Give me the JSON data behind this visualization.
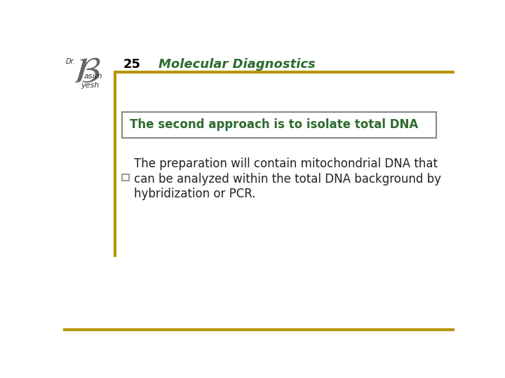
{
  "background_color": "#ffffff",
  "slide_number": "25",
  "title": "Molecular Diagnostics",
  "title_color": "#2D6B2D",
  "top_line_color": "#B8960C",
  "left_line_color": "#B8960C",
  "bottom_line_color": "#B8960C",
  "box_text": "The second approach is to isolate total DNA",
  "box_text_color": "#2D6B2D",
  "box_border_color": "#888888",
  "box_bg_color": "#ffffff",
  "bullet_text": "The preparation will contain mitochondrial DNA that\ncan be analyzed within the total DNA background by\nhybridization or PCR.",
  "bullet_color": "#222222",
  "bullet_marker_color": "#888888",
  "logo_color": "#333333",
  "header_bg": "#f0f0f0"
}
